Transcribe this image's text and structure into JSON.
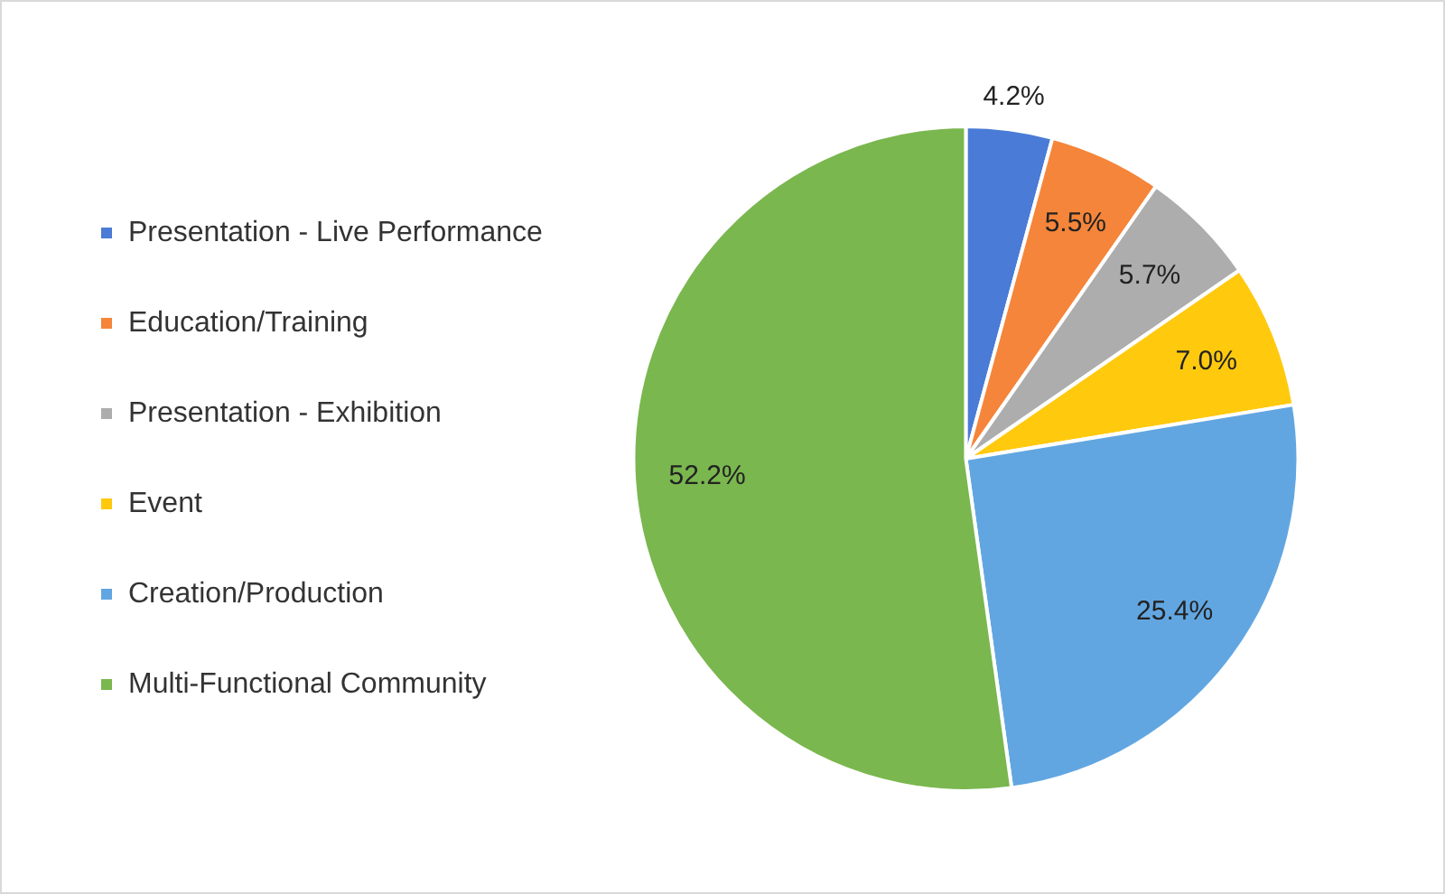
{
  "chart_data": {
    "type": "pie",
    "categories": [
      "Presentation - Live Performance",
      "Education/Training",
      "Presentation - Exhibition",
      "Event",
      "Creation/Production",
      "Multi-Functional Community"
    ],
    "values": [
      4.2,
      5.5,
      5.7,
      7.0,
      25.4,
      52.2
    ],
    "colors": [
      "#4a7bd6",
      "#f5853a",
      "#adadad",
      "#ffc90e",
      "#62a6e1",
      "#7ab74f"
    ],
    "value_labels": [
      "4.2%",
      "5.5%",
      "5.7%",
      "7.0%",
      "25.4%",
      "52.2%"
    ],
    "legend": "left"
  }
}
